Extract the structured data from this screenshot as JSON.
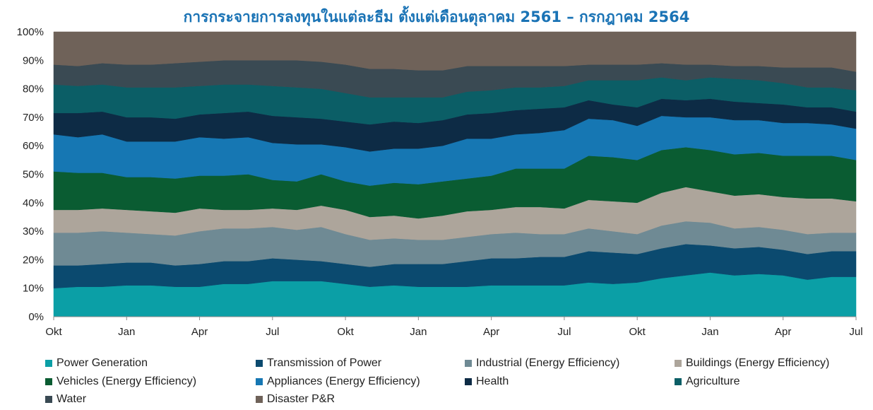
{
  "chart_data": {
    "type": "area",
    "stacked": true,
    "normalized_percent": true,
    "title": "การกระจายการลงทุนในแต่ละธีม ตั้งแต่เดือนตุลาคม 2561 – กรกฎาคม 2564",
    "xlabel": "",
    "ylabel": "",
    "ylim": [
      0,
      100
    ],
    "y_ticks": [
      "0%",
      "10%",
      "20%",
      "30%",
      "40%",
      "50%",
      "60%",
      "70%",
      "80%",
      "90%",
      "100%"
    ],
    "x_tick_labels": [
      "Okt",
      "Jan",
      "Apr",
      "Jul",
      "Okt",
      "Jan",
      "Apr",
      "Jul",
      "Okt",
      "Jan",
      "Apr",
      "Jul"
    ],
    "x_tick_indices": [
      0,
      3,
      6,
      9,
      12,
      15,
      18,
      21,
      24,
      27,
      30,
      33
    ],
    "x": [
      "Okt 2018",
      "Nov 2018",
      "Dec 2018",
      "Jan 2019",
      "Feb 2019",
      "Mar 2019",
      "Apr 2019",
      "May 2019",
      "Jun 2019",
      "Jul 2019",
      "Aug 2019",
      "Sep 2019",
      "Okt 2019",
      "Nov 2019",
      "Dec 2019",
      "Jan 2020",
      "Feb 2020",
      "Mar 2020",
      "Apr 2020",
      "May 2020",
      "Jun 2020",
      "Jul 2020",
      "Aug 2020",
      "Sep 2020",
      "Okt 2020",
      "Nov 2020",
      "Dec 2020",
      "Jan 2021",
      "Feb 2021",
      "Mar 2021",
      "Apr 2021",
      "May 2021",
      "Jun 2021",
      "Jul 2021"
    ],
    "grid": false,
    "legend_position": "bottom",
    "cumulative_boundaries_top_percent": true,
    "series": [
      {
        "name": "Power Generation",
        "color": "#0b9fa6",
        "values": [
          10.0,
          10.5,
          10.5,
          11.0,
          11.0,
          10.5,
          10.5,
          11.5,
          11.5,
          12.5,
          12.5,
          12.5,
          11.5,
          10.5,
          11.0,
          10.5,
          10.5,
          10.5,
          11.0,
          11.0,
          11.0,
          11.0,
          12.0,
          11.5,
          12.0,
          13.5,
          14.5,
          15.5,
          14.5,
          15.0,
          14.5,
          13.0,
          14.0,
          14.0
        ]
      },
      {
        "name": "Transmission of Power",
        "color": "#0b4a6f",
        "values": [
          18.0,
          18.0,
          18.5,
          19.0,
          19.0,
          18.0,
          18.5,
          19.5,
          19.5,
          20.5,
          20.0,
          19.5,
          18.5,
          17.5,
          18.5,
          18.5,
          18.5,
          19.5,
          20.5,
          20.5,
          21.0,
          21.0,
          23.0,
          22.5,
          22.0,
          24.0,
          25.5,
          25.0,
          24.0,
          24.5,
          23.5,
          22.0,
          23.0,
          23.0
        ]
      },
      {
        "name": "Industrial (Energy Efficiency)",
        "color": "#6f8a94",
        "values": [
          29.5,
          29.5,
          30.0,
          29.5,
          29.0,
          28.5,
          30.0,
          31.0,
          31.0,
          31.5,
          30.5,
          31.5,
          29.0,
          27.0,
          27.5,
          27.0,
          27.0,
          28.0,
          29.0,
          29.5,
          29.0,
          29.0,
          31.0,
          30.0,
          29.0,
          32.0,
          33.5,
          33.0,
          31.0,
          31.5,
          30.5,
          29.0,
          29.5,
          29.5
        ]
      },
      {
        "name": "Buildings (Energy Efficiency)",
        "color": "#ada59b",
        "values": [
          37.5,
          37.5,
          38.0,
          37.5,
          37.0,
          36.5,
          38.0,
          37.5,
          37.5,
          38.0,
          37.5,
          39.0,
          37.5,
          35.0,
          35.5,
          34.5,
          35.5,
          37.0,
          37.5,
          38.5,
          38.5,
          38.0,
          41.0,
          40.5,
          40.0,
          43.5,
          45.5,
          44.0,
          42.5,
          43.0,
          42.0,
          41.5,
          41.5,
          40.5
        ]
      },
      {
        "name": "Vehicles (Energy Efficiency)",
        "color": "#0a5c32",
        "values": [
          51.0,
          50.5,
          50.5,
          49.0,
          49.0,
          48.5,
          49.5,
          49.5,
          50.0,
          48.0,
          47.5,
          50.0,
          47.5,
          46.0,
          47.0,
          46.5,
          47.5,
          48.5,
          49.5,
          52.0,
          52.0,
          52.0,
          56.5,
          56.0,
          55.0,
          58.5,
          59.5,
          58.5,
          57.0,
          57.5,
          56.5,
          56.5,
          56.5,
          55.0
        ]
      },
      {
        "name": "Appliances (Energy Efficiency)",
        "color": "#1677b3",
        "values": [
          64.0,
          63.0,
          64.0,
          61.5,
          61.5,
          61.5,
          63.0,
          62.5,
          63.0,
          61.0,
          60.5,
          60.5,
          59.5,
          58.0,
          59.0,
          59.0,
          60.0,
          62.5,
          62.5,
          64.0,
          64.5,
          65.5,
          69.5,
          69.0,
          67.0,
          70.5,
          70.0,
          70.0,
          69.0,
          69.0,
          68.0,
          68.0,
          67.5,
          66.0
        ]
      },
      {
        "name": "Health",
        "color": "#0d2b45",
        "values": [
          71.5,
          71.5,
          72.0,
          70.0,
          70.0,
          69.5,
          71.0,
          71.5,
          72.0,
          70.5,
          70.0,
          69.5,
          68.5,
          67.5,
          68.5,
          68.0,
          69.0,
          71.0,
          71.5,
          72.5,
          73.0,
          73.5,
          76.0,
          74.5,
          73.5,
          76.5,
          76.0,
          76.5,
          75.5,
          75.0,
          74.5,
          73.5,
          73.5,
          72.0
        ]
      },
      {
        "name": "Agriculture",
        "color": "#0b5e66",
        "values": [
          81.5,
          81.0,
          81.5,
          80.5,
          80.5,
          80.5,
          81.0,
          81.5,
          81.5,
          81.0,
          80.5,
          80.0,
          78.5,
          77.0,
          77.0,
          77.0,
          77.0,
          79.0,
          79.5,
          80.5,
          80.5,
          81.0,
          83.0,
          83.0,
          83.0,
          84.0,
          83.0,
          84.0,
          83.5,
          83.0,
          82.0,
          80.5,
          80.5,
          79.5
        ]
      },
      {
        "name": "Water",
        "color": "#3a4a53",
        "values": [
          88.5,
          88.0,
          89.0,
          88.5,
          88.5,
          89.0,
          89.5,
          90.0,
          90.0,
          90.0,
          90.0,
          89.5,
          88.5,
          87.0,
          87.0,
          86.5,
          86.5,
          88.0,
          88.0,
          88.0,
          88.0,
          88.0,
          88.5,
          88.5,
          88.5,
          89.0,
          88.5,
          88.5,
          88.0,
          88.0,
          87.5,
          87.5,
          87.5,
          86.0
        ]
      },
      {
        "name": "Disaster P&R",
        "color": "#6f6259",
        "values": [
          100,
          100,
          100,
          100,
          100,
          100,
          100,
          100,
          100,
          100,
          100,
          100,
          100,
          100,
          100,
          100,
          100,
          100,
          100,
          100,
          100,
          100,
          100,
          100,
          100,
          100,
          100,
          100,
          100,
          100,
          100,
          100,
          100,
          100
        ]
      }
    ]
  }
}
